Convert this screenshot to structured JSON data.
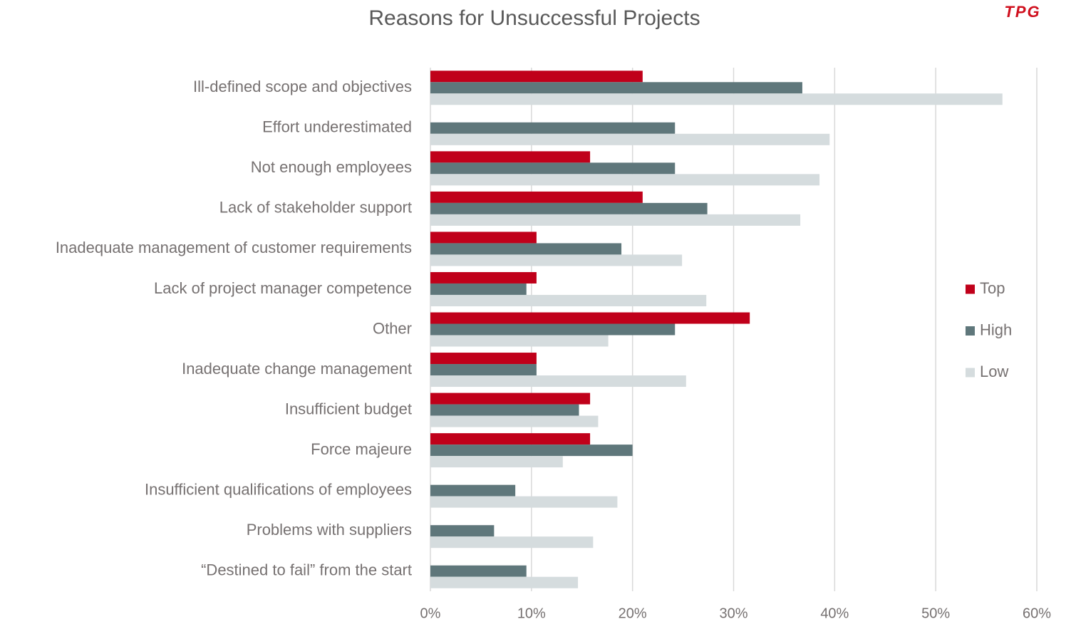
{
  "chart_data": {
    "type": "bar",
    "orientation": "horizontal",
    "title": "Reasons for Unsuccessful Projects",
    "logo": "TPG",
    "categories": [
      "Ill-defined scope and objectives",
      "Effort underestimated",
      "Not enough employees",
      "Lack of stakeholder support",
      "Inadequate management of customer requirements",
      "Lack of project manager competence",
      "Other",
      "Inadequate change management",
      "Insufficient budget",
      "Force majeure",
      "Insufficient qualifications of employees",
      "Problems with suppliers",
      "“Destined to fail” from the start"
    ],
    "series": [
      {
        "name": "Top",
        "color": "#c0001a",
        "values": [
          21.0,
          0,
          15.8,
          21.0,
          10.5,
          10.5,
          31.6,
          10.5,
          15.8,
          15.8,
          0,
          0,
          0
        ]
      },
      {
        "name": "High",
        "color": "#5f777b",
        "values": [
          36.8,
          24.2,
          24.2,
          27.4,
          18.9,
          9.5,
          24.2,
          10.5,
          14.7,
          20.0,
          8.4,
          6.3,
          9.5
        ]
      },
      {
        "name": "Low",
        "color": "#d5dcde",
        "values": [
          56.6,
          39.5,
          38.5,
          36.6,
          24.9,
          27.3,
          17.6,
          25.3,
          16.6,
          13.1,
          18.5,
          16.1,
          14.6
        ]
      }
    ],
    "xlim": [
      0,
      60
    ],
    "xticks": [
      {
        "value": 0,
        "label": "0%"
      },
      {
        "value": 10,
        "label": "10%"
      },
      {
        "value": 20,
        "label": "20%"
      },
      {
        "value": 30,
        "label": "30%"
      },
      {
        "value": 40,
        "label": "40%"
      },
      {
        "value": 50,
        "label": "50%"
      },
      {
        "value": 60,
        "label": "60%"
      }
    ],
    "grid": true,
    "legend": "right"
  }
}
